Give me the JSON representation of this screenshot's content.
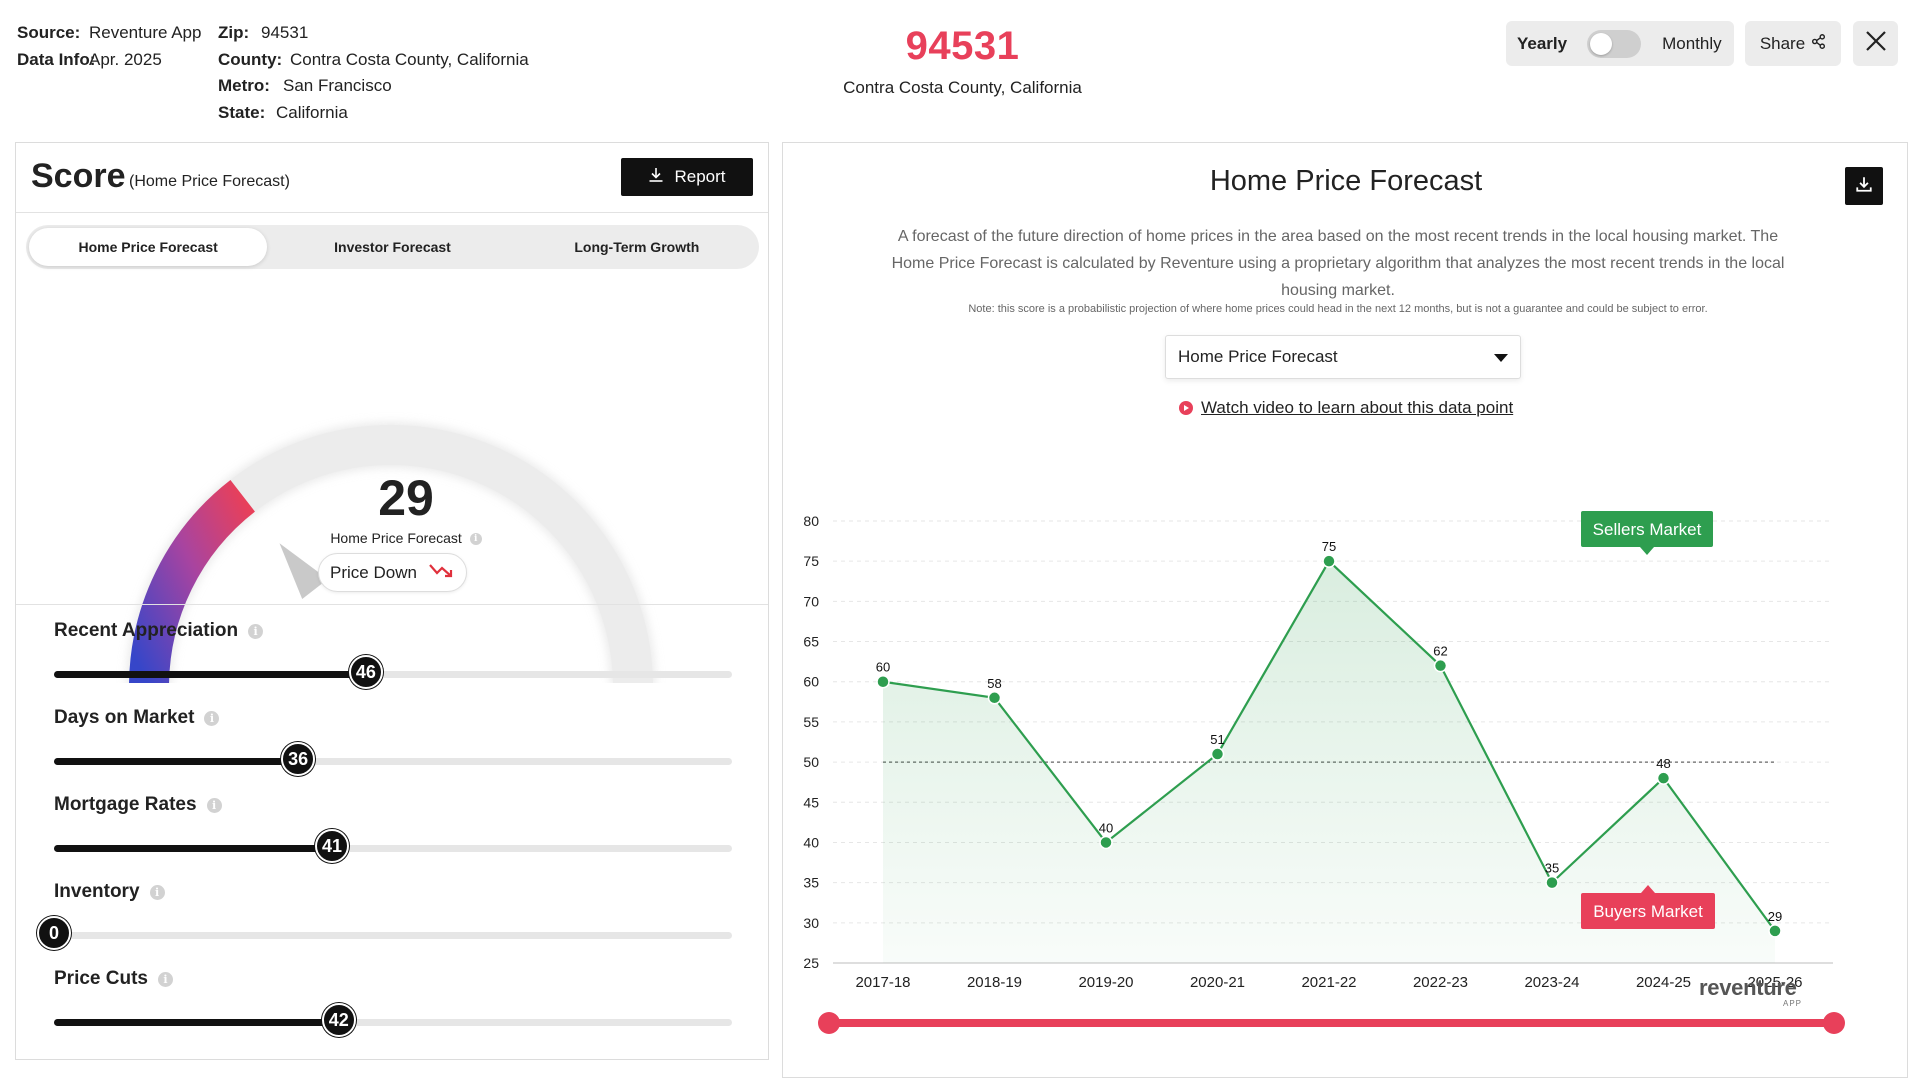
{
  "meta": {
    "source_label": "Source:",
    "source_value": "Reventure App",
    "datainfo_label": "Data Info:",
    "datainfo_value": "Apr. 2025",
    "zip_label": "Zip:",
    "zip_value": "94531",
    "county_label": "County:",
    "county_value": "Contra Costa County, California",
    "metro_label": "Metro:",
    "metro_value": "San Francisco",
    "state_label": "State:",
    "state_value": "California"
  },
  "header": {
    "zip": "94531",
    "county": "Contra Costa County, California",
    "toggle": {
      "left_label": "Yearly",
      "right_label": "Monthly",
      "monthly_on": false
    },
    "share_label": "Share"
  },
  "score_panel": {
    "title": "Score",
    "subtitle": "(Home Price Forecast)",
    "report_label": "Report",
    "tabs": [
      {
        "label": "Home Price Forecast",
        "active": true
      },
      {
        "label": "Investor Forecast",
        "active": false
      },
      {
        "label": "Long-Term Growth",
        "active": false
      }
    ],
    "score_value": "29",
    "score_fraction": 0.29,
    "score_label": "Home Price Forecast",
    "trend_label": "Price Down",
    "metrics": [
      {
        "label": "Recent Appreciation",
        "value": "46"
      },
      {
        "label": "Days on Market",
        "value": "36"
      },
      {
        "label": "Mortgage Rates",
        "value": "41"
      },
      {
        "label": "Inventory",
        "value": "0"
      },
      {
        "label": "Price Cuts",
        "value": "42"
      }
    ]
  },
  "forecast_panel": {
    "title": "Home Price Forecast",
    "description": "A forecast of the future direction of home prices in the area based on the most recent trends in the local housing market. The Home Price Forecast is calculated by Reventure using a proprietary algorithm that analyzes the most recent trends in the local housing market.",
    "note": "Note: this score is a probabilistic projection of where home prices could head in the next 12 months, but is not a guarantee and could be subject to error.",
    "select_value": "Home Price Forecast",
    "video_link": "Watch video to learn about this data point",
    "sellers_label": "Sellers Market",
    "buyers_label": "Buyers Market",
    "brand": "reventure",
    "brand_sub": "APP"
  },
  "colors": {
    "accent": "#e8405a",
    "line": "#2e9e4f",
    "sellers": "#2e9e4f",
    "buyers": "#e8405a",
    "dark": "#111111"
  },
  "chart_data": {
    "type": "line",
    "categories": [
      "2017-18",
      "2018-19",
      "2019-20",
      "2020-21",
      "2021-22",
      "2022-23",
      "2023-24",
      "2024-25",
      "2025-26"
    ],
    "values": [
      60,
      58,
      40,
      51,
      75,
      62,
      35,
      48,
      29
    ],
    "ylim": [
      25,
      80
    ],
    "yticks": [
      25,
      30,
      35,
      40,
      45,
      50,
      55,
      60,
      65,
      70,
      75,
      80
    ],
    "reference_line": 50,
    "grid": true
  }
}
